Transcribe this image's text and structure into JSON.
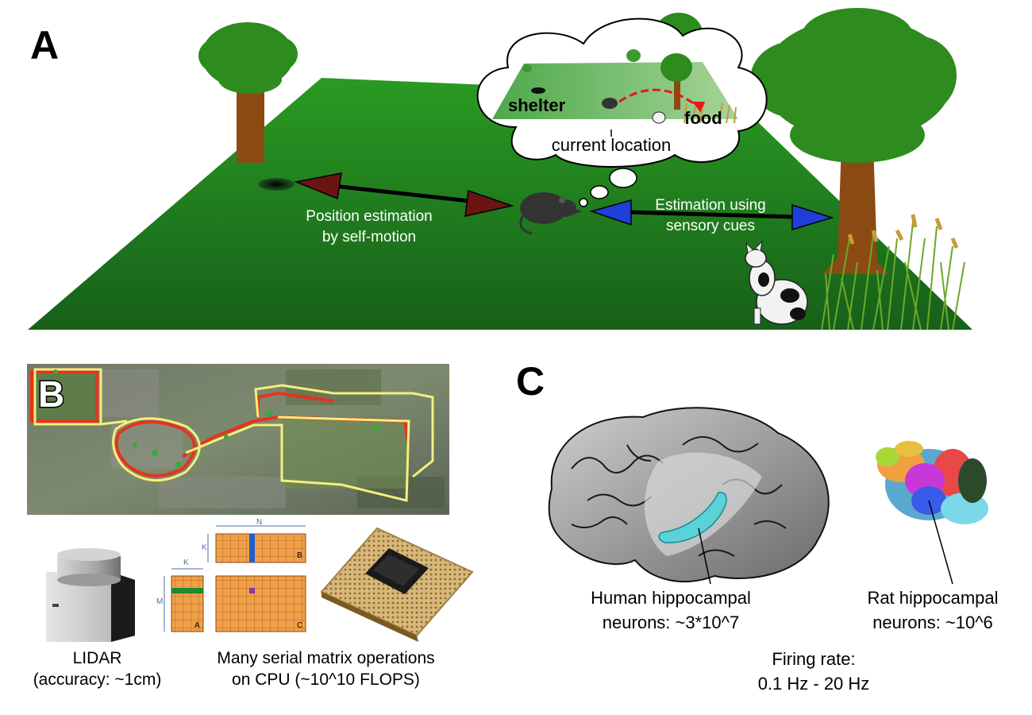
{
  "panel_a": {
    "letter": "A",
    "self_motion_label": "Position estimation\nby self-motion",
    "sensory_label": "Estimation using\nsensory cues",
    "thought": {
      "shelter": "shelter",
      "food": "food",
      "current_location": "current location"
    }
  },
  "panel_b": {
    "letter": "B",
    "lidar_caption": "LIDAR\n(accuracy: ~1cm)",
    "cpu_caption": "Many serial matrix operations\non CPU (~10^10 FLOPS)",
    "matrix_labels": {
      "n": "N",
      "k_top": "K",
      "k_left": "K",
      "m": "M",
      "a": "A",
      "b": "B",
      "c": "C"
    }
  },
  "panel_c": {
    "letter": "C",
    "human_caption": "Human hippocampal\nneurons: ~3*10^7",
    "rat_caption": "Rat hippocampal\nneurons: ~10^6",
    "firing_caption": "Firing rate:\n0.1 Hz - 20 Hz"
  },
  "colors": {
    "grass_dark": "#17601a",
    "grass_light": "#2a9a22",
    "tree_green": "#2e8b1e",
    "trunk": "#8b4a12",
    "arrow_red": "#6b1414",
    "arrow_blue": "#1f3fd8",
    "route_red": "#e8321e",
    "route_yellow": "#f4f07a",
    "chip_orange": "#f0a048",
    "hippocampus_cyan": "#5ad2d8"
  }
}
